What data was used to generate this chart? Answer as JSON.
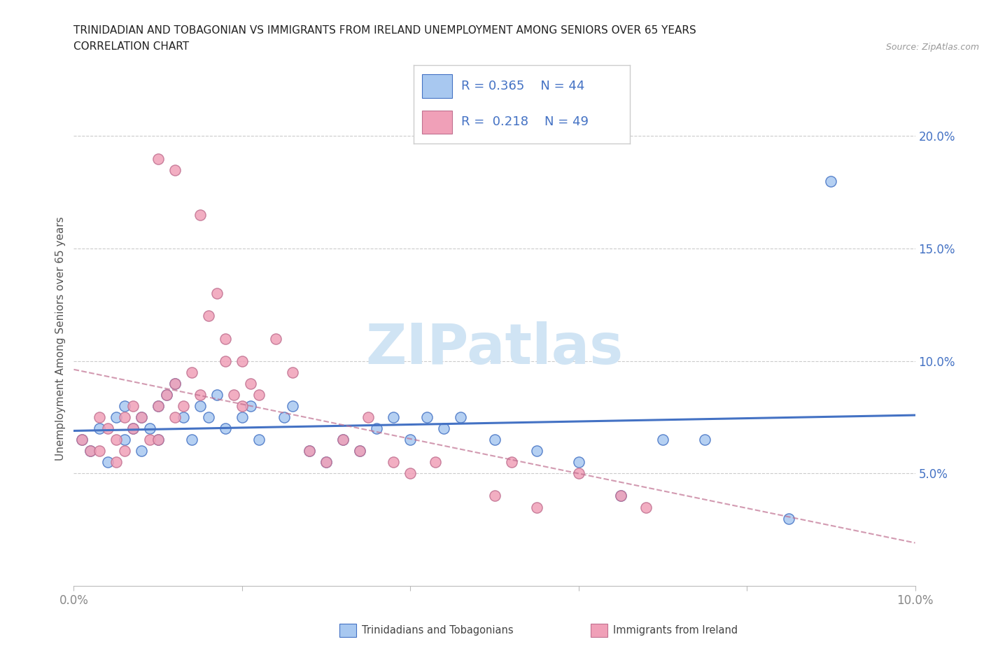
{
  "title_line1": "TRINIDADIAN AND TOBAGONIAN VS IMMIGRANTS FROM IRELAND UNEMPLOYMENT AMONG SENIORS OVER 65 YEARS",
  "title_line2": "CORRELATION CHART",
  "source_text": "Source: ZipAtlas.com",
  "ylabel": "Unemployment Among Seniors over 65 years",
  "xlim": [
    0.0,
    0.1
  ],
  "ylim": [
    0.0,
    0.22
  ],
  "yticks_right": [
    0.05,
    0.1,
    0.15,
    0.2
  ],
  "yticklabels_right": [
    "5.0%",
    "10.0%",
    "15.0%",
    "20.0%"
  ],
  "legend_r1": "0.365",
  "legend_n1": "44",
  "legend_r2": "0.218",
  "legend_n2": "49",
  "color_blue": "#A8C8F0",
  "color_pink": "#F0A0B8",
  "color_blue_line": "#4472C4",
  "color_pink_line": "#C07090",
  "color_blue_text": "#4472C4",
  "watermark_color": "#D0E4F4",
  "grid_color": "#CCCCCC",
  "tick_color": "#888888",
  "blue_x": [
    0.001,
    0.002,
    0.003,
    0.004,
    0.005,
    0.006,
    0.006,
    0.007,
    0.008,
    0.008,
    0.009,
    0.01,
    0.01,
    0.011,
    0.012,
    0.013,
    0.014,
    0.015,
    0.016,
    0.017,
    0.018,
    0.02,
    0.021,
    0.022,
    0.025,
    0.026,
    0.028,
    0.03,
    0.032,
    0.034,
    0.036,
    0.038,
    0.04,
    0.042,
    0.044,
    0.046,
    0.05,
    0.055,
    0.06,
    0.065,
    0.07,
    0.075,
    0.085,
    0.09
  ],
  "blue_y": [
    0.065,
    0.06,
    0.07,
    0.055,
    0.075,
    0.065,
    0.08,
    0.07,
    0.06,
    0.075,
    0.07,
    0.065,
    0.08,
    0.085,
    0.09,
    0.075,
    0.065,
    0.08,
    0.075,
    0.085,
    0.07,
    0.075,
    0.08,
    0.065,
    0.075,
    0.08,
    0.06,
    0.055,
    0.065,
    0.06,
    0.07,
    0.075,
    0.065,
    0.075,
    0.07,
    0.075,
    0.065,
    0.06,
    0.055,
    0.04,
    0.065,
    0.065,
    0.03,
    0.18
  ],
  "pink_x": [
    0.001,
    0.002,
    0.003,
    0.003,
    0.004,
    0.005,
    0.005,
    0.006,
    0.006,
    0.007,
    0.007,
    0.008,
    0.009,
    0.01,
    0.01,
    0.011,
    0.012,
    0.012,
    0.013,
    0.014,
    0.015,
    0.016,
    0.017,
    0.018,
    0.019,
    0.02,
    0.021,
    0.022,
    0.024,
    0.026,
    0.028,
    0.03,
    0.032,
    0.034,
    0.035,
    0.038,
    0.04,
    0.043,
    0.05,
    0.052,
    0.055,
    0.06,
    0.065,
    0.068,
    0.01,
    0.012,
    0.015,
    0.018,
    0.02
  ],
  "pink_y": [
    0.065,
    0.06,
    0.075,
    0.06,
    0.07,
    0.065,
    0.055,
    0.075,
    0.06,
    0.08,
    0.07,
    0.075,
    0.065,
    0.08,
    0.065,
    0.085,
    0.075,
    0.09,
    0.08,
    0.095,
    0.085,
    0.12,
    0.13,
    0.1,
    0.085,
    0.08,
    0.09,
    0.085,
    0.11,
    0.095,
    0.06,
    0.055,
    0.065,
    0.06,
    0.075,
    0.055,
    0.05,
    0.055,
    0.04,
    0.055,
    0.035,
    0.05,
    0.04,
    0.035,
    0.19,
    0.185,
    0.165,
    0.11,
    0.1
  ]
}
